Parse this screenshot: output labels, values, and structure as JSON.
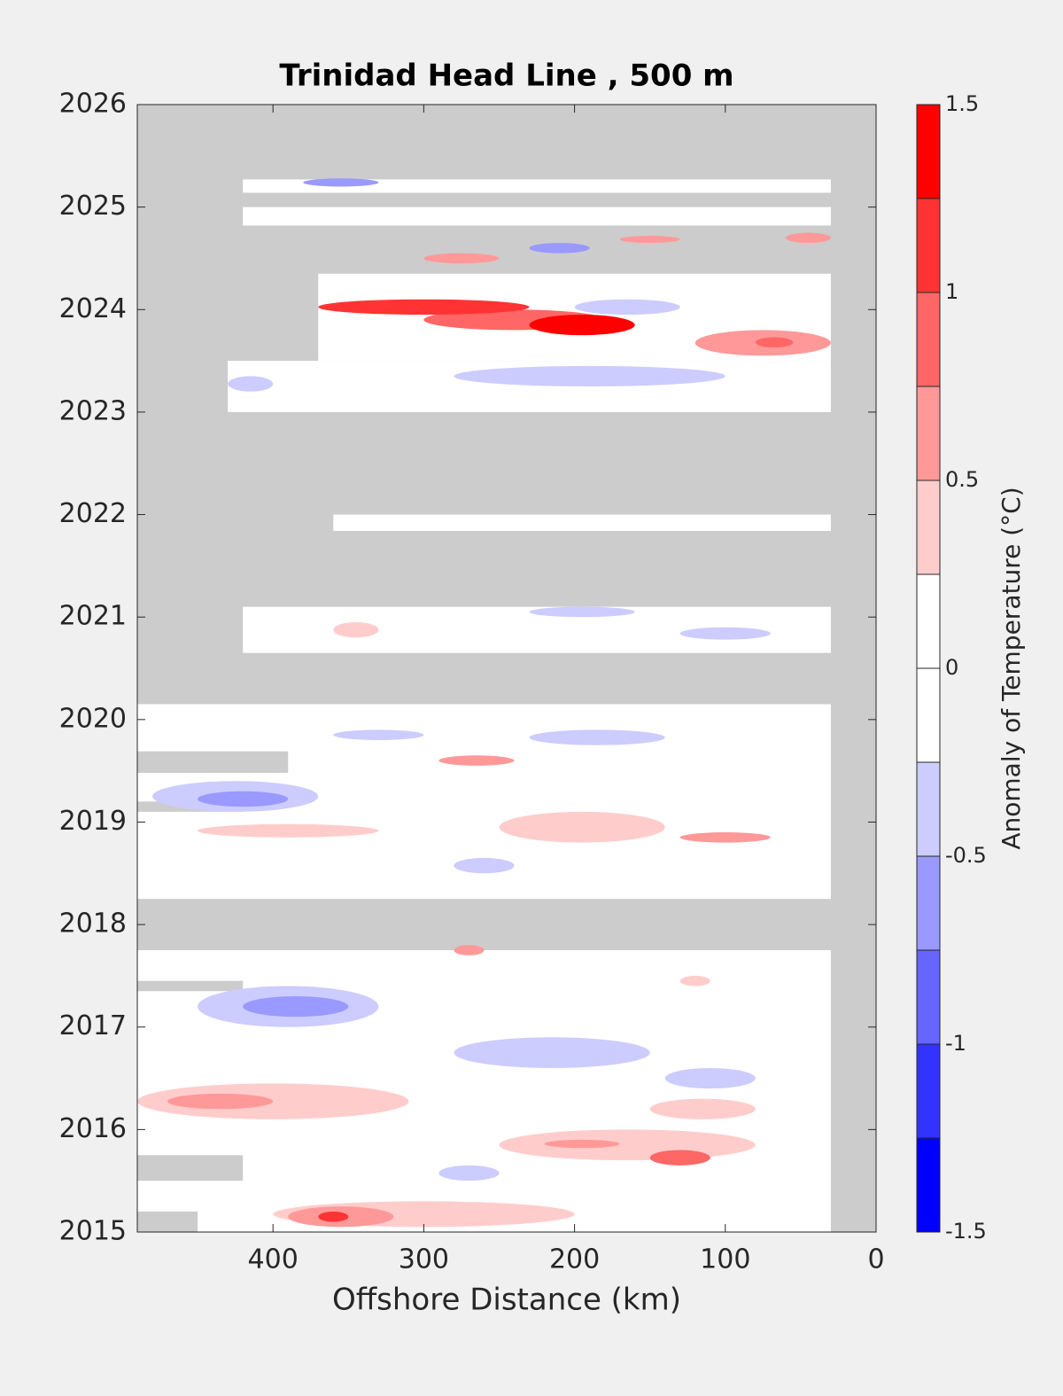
{
  "chart_data": {
    "type": "contour",
    "title": "Trinidad Head Line , 500 m",
    "xlabel": "Offshore Distance (km)",
    "xlim": [
      490,
      0
    ],
    "xticks": [
      400,
      300,
      200,
      100,
      0
    ],
    "ylim": [
      2015,
      2026
    ],
    "yticks": [
      2015,
      2016,
      2017,
      2018,
      2019,
      2020,
      2021,
      2022,
      2023,
      2024,
      2025,
      2026
    ],
    "missing_color": "#cccccc",
    "colorbar": {
      "label": "Anomaly of Temperature (°C)",
      "levels": [
        -1.5,
        -1.25,
        -1,
        -0.75,
        -0.5,
        -0.25,
        0,
        0.25,
        0.5,
        0.75,
        1,
        1.25,
        1.5
      ],
      "colors": [
        "#0000ff",
        "#3333ff",
        "#6666ff",
        "#9999ff",
        "#ccccff",
        "#ffffff",
        "#ffffff",
        "#ffcccc",
        "#ff9999",
        "#ff6666",
        "#ff3333",
        "#ff0000"
      ],
      "ticks": [
        -1.5,
        -1,
        -0.5,
        0,
        0.5,
        1,
        1.5
      ]
    },
    "coverage": [
      {
        "x": [
          490,
          30
        ],
        "y": [
          2015,
          2017.75
        ]
      },
      {
        "x": [
          490,
          30
        ],
        "y": [
          2018.25,
          2020.15
        ]
      },
      {
        "x": [
          420,
          30
        ],
        "y": [
          2020.65,
          2021.1
        ]
      },
      {
        "x": [
          360,
          30
        ],
        "y": [
          2021.84,
          2022.0
        ]
      },
      {
        "x": [
          430,
          30
        ],
        "y": [
          2023.0,
          2023.5
        ]
      },
      {
        "x": [
          370,
          30
        ],
        "y": [
          2023.5,
          2024.35
        ]
      },
      {
        "x": [
          420,
          30
        ],
        "y": [
          2024.82,
          2025.0
        ]
      },
      {
        "x": [
          420,
          30
        ],
        "y": [
          2025.14,
          2025.27
        ]
      }
    ],
    "gaps": [
      {
        "x": [
          490,
          390
        ],
        "y": [
          2019.48,
          2019.69
        ]
      },
      {
        "x": [
          490,
          420
        ],
        "y": [
          2019.1,
          2019.2
        ]
      },
      {
        "x": [
          490,
          420
        ],
        "y": [
          2017.35,
          2017.45
        ]
      },
      {
        "x": [
          490,
          420
        ],
        "y": [
          2015.5,
          2015.75
        ]
      },
      {
        "x": [
          490,
          450
        ],
        "y": [
          2015,
          2015.2
        ]
      }
    ],
    "blobs": [
      {
        "x": [
          300,
          180
        ],
        "y": [
          2023.8,
          2024.0
        ],
        "value": 0.9
      },
      {
        "x": [
          370,
          230
        ],
        "y": [
          2023.95,
          2024.1
        ],
        "value": 1.1
      },
      {
        "x": [
          230,
          160
        ],
        "y": [
          2023.75,
          2023.95
        ],
        "value": 1.3
      },
      {
        "x": [
          120,
          30
        ],
        "y": [
          2023.55,
          2023.8
        ],
        "value": 0.6
      },
      {
        "x": [
          80,
          55
        ],
        "y": [
          2023.63,
          2023.73
        ],
        "value": 0.9
      },
      {
        "x": [
          300,
          250
        ],
        "y": [
          2024.45,
          2024.55
        ],
        "value": 0.6
      },
      {
        "x": [
          170,
          130
        ],
        "y": [
          2024.65,
          2024.72
        ],
        "value": 0.6
      },
      {
        "x": [
          60,
          30
        ],
        "y": [
          2024.65,
          2024.75
        ],
        "value": 0.6
      },
      {
        "x": [
          380,
          330
        ],
        "y": [
          2025.2,
          2025.28
        ],
        "value": -0.6
      },
      {
        "x": [
          230,
          190
        ],
        "y": [
          2024.55,
          2024.65
        ],
        "value": -0.6
      },
      {
        "x": [
          200,
          130
        ],
        "y": [
          2023.95,
          2024.1
        ],
        "value": -0.3
      },
      {
        "x": [
          280,
          100
        ],
        "y": [
          2023.25,
          2023.45
        ],
        "value": -0.3
      },
      {
        "x": [
          430,
          400
        ],
        "y": [
          2023.2,
          2023.35
        ],
        "value": -0.4
      },
      {
        "x": [
          130,
          70
        ],
        "y": [
          2020.78,
          2020.9
        ],
        "value": -0.3
      },
      {
        "x": [
          230,
          160
        ],
        "y": [
          2021.0,
          2021.1
        ],
        "value": -0.3
      },
      {
        "x": [
          360,
          330
        ],
        "y": [
          2020.8,
          2020.95
        ],
        "value": 0.3
      },
      {
        "x": [
          290,
          240
        ],
        "y": [
          2019.55,
          2019.65
        ],
        "value": 0.6
      },
      {
        "x": [
          230,
          140
        ],
        "y": [
          2019.75,
          2019.9
        ],
        "value": -0.3
      },
      {
        "x": [
          360,
          300
        ],
        "y": [
          2019.8,
          2019.9
        ],
        "value": -0.3
      },
      {
        "x": [
          480,
          370
        ],
        "y": [
          2019.1,
          2019.4
        ],
        "value": -0.3
      },
      {
        "x": [
          450,
          390
        ],
        "y": [
          2019.15,
          2019.3
        ],
        "value": -0.6
      },
      {
        "x": [
          250,
          140
        ],
        "y": [
          2018.8,
          2019.1
        ],
        "value": 0.3
      },
      {
        "x": [
          130,
          70
        ],
        "y": [
          2018.8,
          2018.9
        ],
        "value": 0.6
      },
      {
        "x": [
          280,
          240
        ],
        "y": [
          2018.5,
          2018.65
        ],
        "value": -0.4
      },
      {
        "x": [
          450,
          330
        ],
        "y": [
          2018.85,
          2018.98
        ],
        "value": 0.3
      },
      {
        "x": [
          450,
          330
        ],
        "y": [
          2017.0,
          2017.4
        ],
        "value": -0.3
      },
      {
        "x": [
          420,
          350
        ],
        "y": [
          2017.1,
          2017.3
        ],
        "value": -0.6
      },
      {
        "x": [
          280,
          150
        ],
        "y": [
          2016.6,
          2016.9
        ],
        "value": -0.3
      },
      {
        "x": [
          140,
          80
        ],
        "y": [
          2016.4,
          2016.6
        ],
        "value": -0.3
      },
      {
        "x": [
          280,
          260
        ],
        "y": [
          2017.7,
          2017.8
        ],
        "value": 0.6
      },
      {
        "x": [
          130,
          110
        ],
        "y": [
          2017.4,
          2017.5
        ],
        "value": 0.3
      },
      {
        "x": [
          490,
          310
        ],
        "y": [
          2016.1,
          2016.45
        ],
        "value": 0.3
      },
      {
        "x": [
          470,
          400
        ],
        "y": [
          2016.2,
          2016.35
        ],
        "value": 0.6
      },
      {
        "x": [
          250,
          80
        ],
        "y": [
          2015.7,
          2016.0
        ],
        "value": 0.3
      },
      {
        "x": [
          220,
          170
        ],
        "y": [
          2015.82,
          2015.9
        ],
        "value": 0.6
      },
      {
        "x": [
          150,
          110
        ],
        "y": [
          2015.65,
          2015.8
        ],
        "value": 0.8
      },
      {
        "x": [
          150,
          80
        ],
        "y": [
          2016.1,
          2016.3
        ],
        "value": 0.3
      },
      {
        "x": [
          290,
          250
        ],
        "y": [
          2015.5,
          2015.65
        ],
        "value": -0.3
      },
      {
        "x": [
          400,
          200
        ],
        "y": [
          2015.05,
          2015.3
        ],
        "value": 0.3
      },
      {
        "x": [
          390,
          320
        ],
        "y": [
          2015.05,
          2015.25
        ],
        "value": 0.6
      },
      {
        "x": [
          370,
          350
        ],
        "y": [
          2015.1,
          2015.2
        ],
        "value": 1.0
      }
    ]
  }
}
